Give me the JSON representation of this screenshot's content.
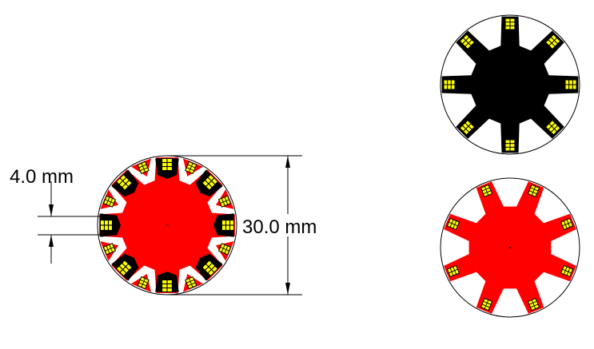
{
  "dimensions": {
    "pad_width_label": "4.0 mm",
    "diameter_label": "30.0 mm"
  },
  "colors": {
    "red": "#ff0000",
    "black": "#000000",
    "pad_yellow": "#ffff00",
    "outline": "#000000",
    "background": "#ffffff"
  },
  "views": [
    {
      "name": "combined-view",
      "copper": "red",
      "pads": "black",
      "arms": 8
    },
    {
      "name": "black-layer-view",
      "body": "black",
      "arms": 8
    },
    {
      "name": "red-layer-view",
      "body": "red",
      "arms": 8
    }
  ]
}
